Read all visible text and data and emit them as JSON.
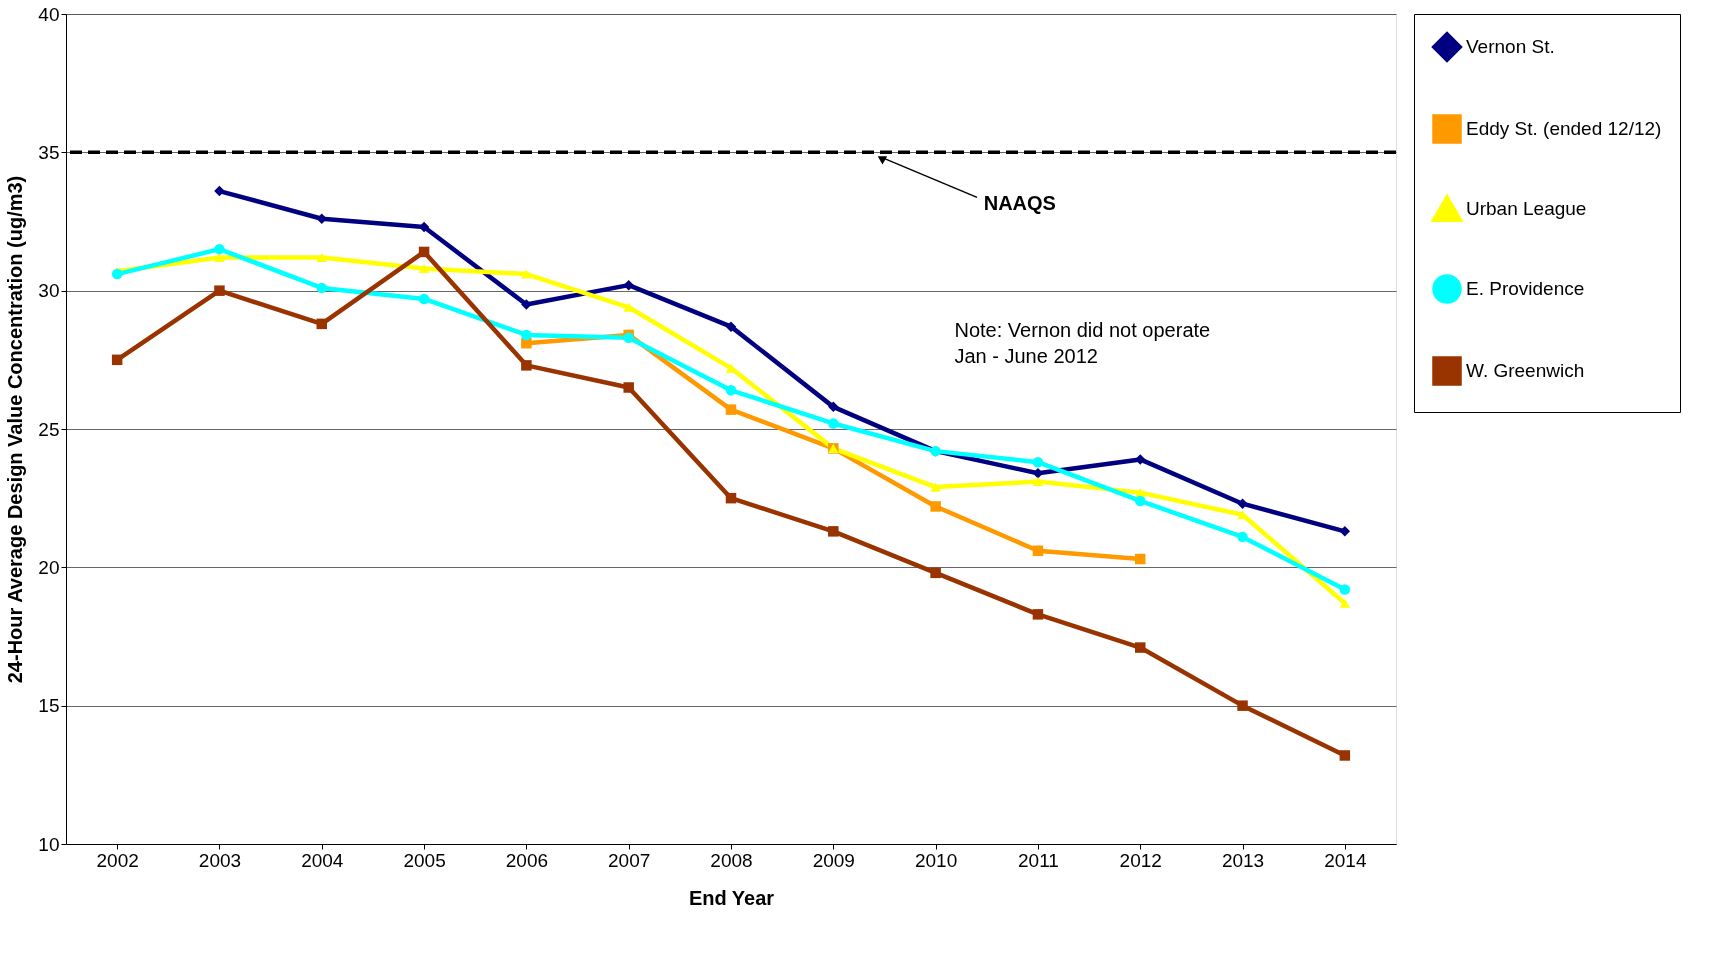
{
  "chart_data": {
    "type": "line",
    "xlabel": "End Year",
    "ylabel": "24-Hour Average Design Value Concentration (ug/m3)",
    "categories": [
      "2002",
      "2003",
      "2004",
      "2005",
      "2006",
      "2007",
      "2008",
      "2009",
      "2010",
      "2011",
      "2012",
      "2013",
      "2014"
    ],
    "series": [
      {
        "name": "Vernon St.",
        "color": "#000080",
        "marker": "diamond",
        "values": [
          null,
          33.6,
          32.6,
          32.3,
          29.5,
          30.2,
          28.7,
          25.8,
          24.2,
          23.4,
          23.9,
          22.3,
          21.3
        ]
      },
      {
        "name": "Eddy St. (ended 12/12)",
        "color": "#ff9900",
        "marker": "square",
        "values": [
          null,
          null,
          null,
          null,
          28.1,
          28.4,
          25.7,
          24.3,
          22.2,
          20.6,
          20.3,
          null,
          null
        ]
      },
      {
        "name": "Urban League",
        "color": "#ffff00",
        "marker": "triangle",
        "values": [
          30.7,
          31.2,
          31.2,
          30.8,
          30.6,
          29.4,
          27.2,
          24.3,
          22.9,
          23.1,
          22.7,
          21.9,
          18.7
        ]
      },
      {
        "name": "E. Providence",
        "color": "#00ffff",
        "marker": "circle",
        "values": [
          30.6,
          31.5,
          30.1,
          29.7,
          28.4,
          28.3,
          26.4,
          25.2,
          24.2,
          23.8,
          22.4,
          21.1,
          19.2
        ]
      },
      {
        "name": "W. Greenwich",
        "color": "#993300",
        "marker": "square",
        "values": [
          27.5,
          30.0,
          28.8,
          31.4,
          27.3,
          26.5,
          22.5,
          21.3,
          19.8,
          18.3,
          17.1,
          15.0,
          13.2
        ]
      }
    ],
    "ylim": [
      10,
      40
    ],
    "yticks": [
      10,
      15,
      20,
      25,
      30,
      35,
      40
    ],
    "grid": "y",
    "legend": "right",
    "ref_lines": [
      {
        "axis": "y",
        "value": 35,
        "label": "NAAQS",
        "color": "#000000",
        "line_style": "dashed"
      }
    ],
    "annotations": [
      "Note:  Vernon did not operate\n Jan - June 2012"
    ]
  }
}
